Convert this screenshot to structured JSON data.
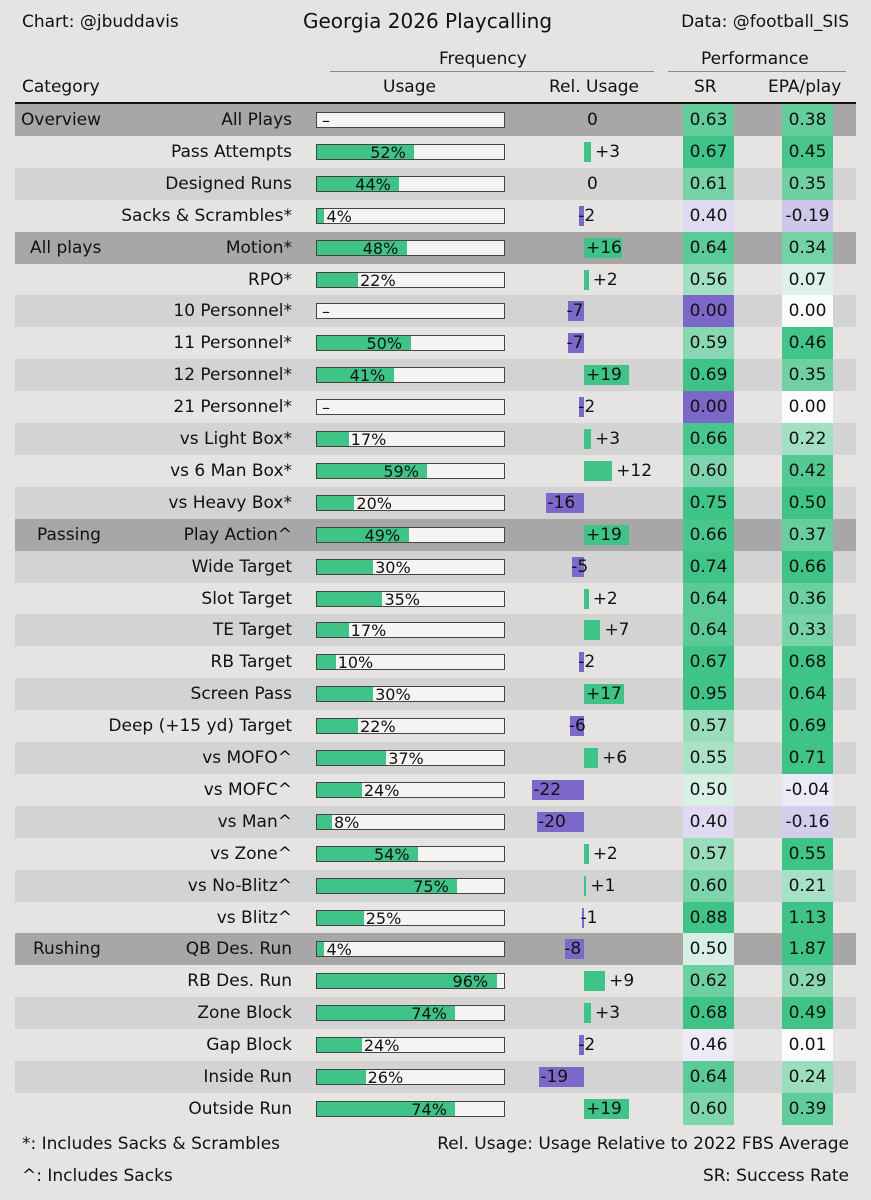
{
  "header": {
    "credit": "Chart: @jbuddavis",
    "title": "Georgia 2026 Playcalling",
    "source": "Data: @football_SIS",
    "frequency": "Frequency",
    "performance": "Performance",
    "col_category": "Category",
    "col_usage": "Usage",
    "col_rel_usage": "Rel. Usage",
    "col_sr": "SR",
    "col_epa": "EPA/play"
  },
  "footer": {
    "note1": "*: Includes Sacks & Scrambles",
    "note2": "^: Includes Sacks",
    "note3": "Rel. Usage: Usage Relative to 2022 FBS Average",
    "note4": "SR: Success Rate"
  },
  "colors": {
    "usage_bar": "#3fc386",
    "rel_positive": "#3fc386",
    "rel_negative": "#7b68c9",
    "row_header": "#a7a7a7",
    "row_alt": "#d3d3d3",
    "row_plain": "#e6e4e3"
  },
  "chart_data": {
    "type": "table",
    "columns": [
      "Category",
      "Usage",
      "Rel. Usage",
      "SR",
      "EPA/play"
    ],
    "rows": [
      {
        "group": "Overview",
        "label": "All Plays",
        "usage": null,
        "usage_text": "–",
        "rel": 0,
        "rel_text": "0",
        "sr": "0.63",
        "epa": "0.38"
      },
      {
        "group": "",
        "label": "Pass Attempts",
        "usage": 52,
        "usage_text": "52%",
        "rel": 3,
        "rel_text": "+3",
        "sr": "0.67",
        "epa": "0.45"
      },
      {
        "group": "",
        "label": "Designed Runs",
        "usage": 44,
        "usage_text": "44%",
        "rel": 0,
        "rel_text": "0",
        "sr": "0.61",
        "epa": "0.35"
      },
      {
        "group": "",
        "label": "Sacks & Scrambles*",
        "usage": 4,
        "usage_text": "4%",
        "rel": -2,
        "rel_text": "-2",
        "sr": "0.40",
        "epa": "-0.19"
      },
      {
        "group": "All plays",
        "label": "Motion*",
        "usage": 48,
        "usage_text": "48%",
        "rel": 16,
        "rel_text": "+16",
        "sr": "0.64",
        "epa": "0.34"
      },
      {
        "group": "",
        "label": "RPO*",
        "usage": 22,
        "usage_text": "22%",
        "rel": 2,
        "rel_text": "+2",
        "sr": "0.56",
        "epa": "0.07"
      },
      {
        "group": "",
        "label": "10 Personnel*",
        "usage": null,
        "usage_text": "–",
        "rel": -7,
        "rel_text": "-7",
        "sr": "0.00",
        "epa": "0.00"
      },
      {
        "group": "",
        "label": "11 Personnel*",
        "usage": 50,
        "usage_text": "50%",
        "rel": -7,
        "rel_text": "-7",
        "sr": "0.59",
        "epa": "0.46"
      },
      {
        "group": "",
        "label": "12 Personnel*",
        "usage": 41,
        "usage_text": "41%",
        "rel": 19,
        "rel_text": "+19",
        "sr": "0.69",
        "epa": "0.35"
      },
      {
        "group": "",
        "label": "21 Personnel*",
        "usage": null,
        "usage_text": "–",
        "rel": -2,
        "rel_text": "-2",
        "sr": "0.00",
        "epa": "0.00"
      },
      {
        "group": "",
        "label": "vs Light Box*",
        "usage": 17,
        "usage_text": "17%",
        "rel": 3,
        "rel_text": "+3",
        "sr": "0.66",
        "epa": "0.22"
      },
      {
        "group": "",
        "label": "vs 6 Man Box*",
        "usage": 59,
        "usage_text": "59%",
        "rel": 12,
        "rel_text": "+12",
        "sr": "0.60",
        "epa": "0.42"
      },
      {
        "group": "",
        "label": "vs Heavy Box*",
        "usage": 20,
        "usage_text": "20%",
        "rel": -16,
        "rel_text": "-16",
        "sr": "0.75",
        "epa": "0.50"
      },
      {
        "group": "Passing",
        "label": "Play Action^",
        "usage": 49,
        "usage_text": "49%",
        "rel": 19,
        "rel_text": "+19",
        "sr": "0.66",
        "epa": "0.37"
      },
      {
        "group": "",
        "label": "Wide Target",
        "usage": 30,
        "usage_text": "30%",
        "rel": -5,
        "rel_text": "-5",
        "sr": "0.74",
        "epa": "0.66"
      },
      {
        "group": "",
        "label": "Slot Target",
        "usage": 35,
        "usage_text": "35%",
        "rel": 2,
        "rel_text": "+2",
        "sr": "0.64",
        "epa": "0.36"
      },
      {
        "group": "",
        "label": "TE Target",
        "usage": 17,
        "usage_text": "17%",
        "rel": 7,
        "rel_text": "+7",
        "sr": "0.64",
        "epa": "0.33"
      },
      {
        "group": "",
        "label": "RB Target",
        "usage": 10,
        "usage_text": "10%",
        "rel": -2,
        "rel_text": "-2",
        "sr": "0.67",
        "epa": "0.68"
      },
      {
        "group": "",
        "label": "Screen Pass",
        "usage": 30,
        "usage_text": "30%",
        "rel": 17,
        "rel_text": "+17",
        "sr": "0.95",
        "epa": "0.64"
      },
      {
        "group": "",
        "label": "Deep (+15 yd) Target",
        "usage": 22,
        "usage_text": "22%",
        "rel": -6,
        "rel_text": "-6",
        "sr": "0.57",
        "epa": "0.69"
      },
      {
        "group": "",
        "label": "vs MOFO^",
        "usage": 37,
        "usage_text": "37%",
        "rel": 6,
        "rel_text": "+6",
        "sr": "0.55",
        "epa": "0.71"
      },
      {
        "group": "",
        "label": "vs MOFC^",
        "usage": 24,
        "usage_text": "24%",
        "rel": -22,
        "rel_text": "-22",
        "sr": "0.50",
        "epa": "-0.04"
      },
      {
        "group": "",
        "label": "vs Man^",
        "usage": 8,
        "usage_text": "8%",
        "rel": -20,
        "rel_text": "-20",
        "sr": "0.40",
        "epa": "-0.16"
      },
      {
        "group": "",
        "label": "vs Zone^",
        "usage": 54,
        "usage_text": "54%",
        "rel": 2,
        "rel_text": "+2",
        "sr": "0.57",
        "epa": "0.55"
      },
      {
        "group": "",
        "label": "vs No-Blitz^",
        "usage": 75,
        "usage_text": "75%",
        "rel": 1,
        "rel_text": "+1",
        "sr": "0.60",
        "epa": "0.21"
      },
      {
        "group": "",
        "label": "vs Blitz^",
        "usage": 25,
        "usage_text": "25%",
        "rel": -1,
        "rel_text": "-1",
        "sr": "0.88",
        "epa": "1.13"
      },
      {
        "group": "Rushing",
        "label": "QB Des. Run",
        "usage": 4,
        "usage_text": "4%",
        "rel": -8,
        "rel_text": "-8",
        "sr": "0.50",
        "epa": "1.87"
      },
      {
        "group": "",
        "label": "RB Des. Run",
        "usage": 96,
        "usage_text": "96%",
        "rel": 9,
        "rel_text": "+9",
        "sr": "0.62",
        "epa": "0.29"
      },
      {
        "group": "",
        "label": "Zone Block",
        "usage": 74,
        "usage_text": "74%",
        "rel": 3,
        "rel_text": "+3",
        "sr": "0.68",
        "epa": "0.49"
      },
      {
        "group": "",
        "label": "Gap Block",
        "usage": 24,
        "usage_text": "24%",
        "rel": -2,
        "rel_text": "-2",
        "sr": "0.46",
        "epa": "0.01"
      },
      {
        "group": "",
        "label": "Inside Run",
        "usage": 26,
        "usage_text": "26%",
        "rel": -19,
        "rel_text": "-19",
        "sr": "0.64",
        "epa": "0.24"
      },
      {
        "group": "",
        "label": "Outside Run",
        "usage": 74,
        "usage_text": "74%",
        "rel": 19,
        "rel_text": "+19",
        "sr": "0.60",
        "epa": "0.39"
      }
    ]
  }
}
